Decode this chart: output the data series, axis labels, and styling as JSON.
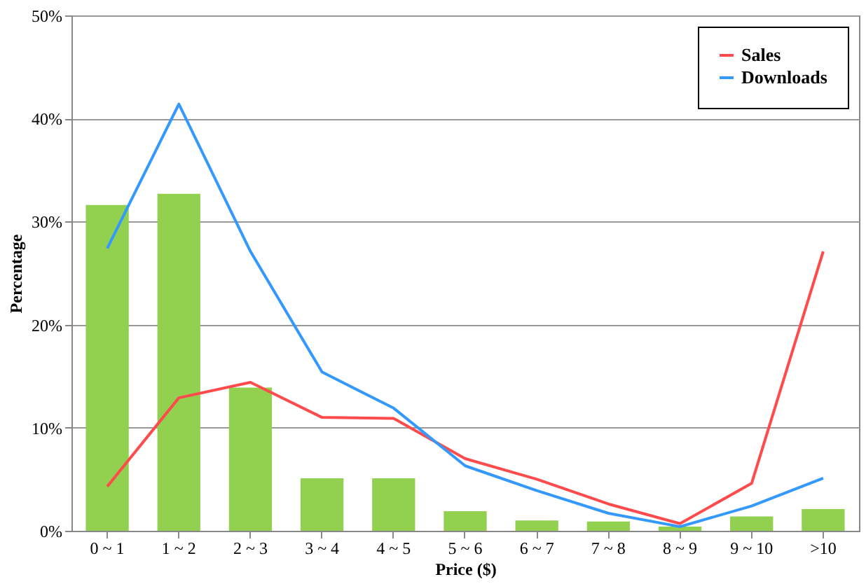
{
  "chart_data": {
    "type": "bar",
    "xlabel": "Price ($)",
    "ylabel": "Percentage",
    "categories": [
      "0 ~ 1",
      "1 ~ 2",
      "2 ~ 3",
      "3 ~ 4",
      "4 ~ 5",
      "5 ~ 6",
      "6 ~ 7",
      "7 ~ 8",
      "8 ~ 9",
      "9 ~ 10",
      ">10"
    ],
    "series": [
      {
        "color": "#92d050",
        "values": [
          31.6,
          32.7,
          13.9,
          5.1,
          5.1,
          1.9,
          1.0,
          0.9,
          0.4,
          1.4,
          2.1
        ]
      },
      {
        "type": "line",
        "name": "Sales",
        "color": "#ff4b4b",
        "values": [
          4.3,
          12.9,
          14.4,
          11.0,
          10.9,
          7.0,
          5.0,
          2.6,
          0.7,
          4.6,
          27.1
        ]
      },
      {
        "type": "line",
        "name": "Downloads",
        "color": "#3399ff",
        "values": [
          27.4,
          41.4,
          27.1,
          15.4,
          11.9,
          6.3,
          3.9,
          1.7,
          0.4,
          2.4,
          5.1
        ]
      }
    ],
    "ylim": [
      0,
      50
    ],
    "yticks": [
      {
        "value": 0,
        "label": "0%"
      },
      {
        "value": 10,
        "label": "10%"
      },
      {
        "value": 20,
        "label": "20%"
      },
      {
        "value": 30,
        "label": "30%"
      },
      {
        "value": 40,
        "label": "40%"
      },
      {
        "value": 50,
        "label": "50%"
      }
    ],
    "grid": "y",
    "legend": "top right",
    "marker": "none",
    "line_style": "solid"
  }
}
